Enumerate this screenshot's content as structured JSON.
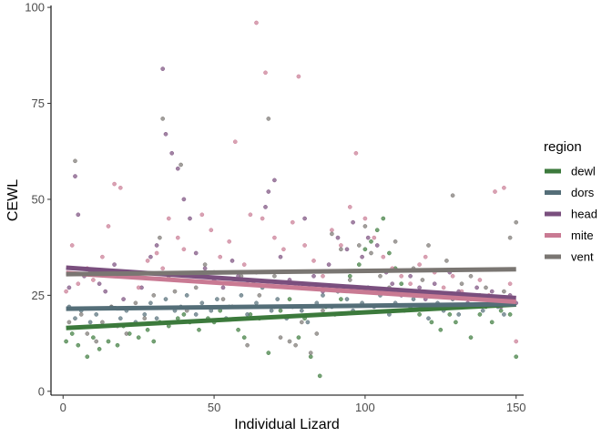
{
  "chart_data": {
    "type": "scatter",
    "title": "",
    "xlabel": "Individual Lizard",
    "ylabel": "CEWL",
    "xlim": [
      -4,
      152.5
    ],
    "ylim": [
      -1,
      100.5
    ],
    "x_ticks": [
      0,
      50,
      100,
      150
    ],
    "y_ticks": [
      0,
      25,
      50,
      75,
      100
    ],
    "x_tick_labels": [
      "0",
      "50",
      "100",
      "150"
    ],
    "y_tick_labels": [
      "0",
      "25",
      "50",
      "75",
      "100"
    ],
    "grid": false,
    "legend": {
      "title": "region",
      "position": "right"
    },
    "series": [
      {
        "name": "dewl",
        "color": "#3c7a3c",
        "trend": [
          [
            1,
            16.5
          ],
          [
            150,
            22.6
          ]
        ],
        "points": [
          [
            1,
            13
          ],
          [
            3,
            15
          ],
          [
            5,
            12
          ],
          [
            8,
            9
          ],
          [
            10,
            14
          ],
          [
            12,
            11
          ],
          [
            15,
            13
          ],
          [
            18,
            12
          ],
          [
            20,
            17
          ],
          [
            22,
            15
          ],
          [
            25,
            14
          ],
          [
            28,
            16
          ],
          [
            30,
            13
          ],
          [
            32,
            18
          ],
          [
            35,
            17
          ],
          [
            38,
            19
          ],
          [
            40,
            20
          ],
          [
            42,
            18
          ],
          [
            45,
            16
          ],
          [
            48,
            19
          ],
          [
            50,
            18
          ],
          [
            52,
            21
          ],
          [
            55,
            22
          ],
          [
            58,
            16
          ],
          [
            60,
            14
          ],
          [
            62,
            20
          ],
          [
            65,
            19
          ],
          [
            68,
            10
          ],
          [
            70,
            22
          ],
          [
            72,
            21
          ],
          [
            75,
            24
          ],
          [
            78,
            14
          ],
          [
            80,
            19
          ],
          [
            82,
            9
          ],
          [
            85,
            4
          ],
          [
            87,
            22
          ],
          [
            90,
            20
          ],
          [
            92,
            24
          ],
          [
            95,
            30
          ],
          [
            98,
            33
          ],
          [
            100,
            37
          ],
          [
            102,
            39
          ],
          [
            104,
            42
          ],
          [
            106,
            45
          ],
          [
            108,
            36
          ],
          [
            110,
            32
          ],
          [
            112,
            28
          ],
          [
            115,
            22
          ],
          [
            118,
            20
          ],
          [
            120,
            25
          ],
          [
            122,
            18
          ],
          [
            125,
            16
          ],
          [
            128,
            20
          ],
          [
            130,
            18
          ],
          [
            132,
            22
          ],
          [
            135,
            14
          ],
          [
            138,
            20
          ],
          [
            140,
            22
          ],
          [
            142,
            18
          ],
          [
            145,
            21
          ],
          [
            148,
            20
          ],
          [
            150,
            9
          ]
        ]
      },
      {
        "name": "dors",
        "color": "#546e78",
        "trend": [
          [
            1,
            21.5
          ],
          [
            150,
            22.7
          ]
        ],
        "points": [
          [
            2,
            22
          ],
          [
            4,
            19
          ],
          [
            6,
            21
          ],
          [
            9,
            18
          ],
          [
            11,
            20
          ],
          [
            14,
            17
          ],
          [
            16,
            22
          ],
          [
            19,
            19
          ],
          [
            21,
            21
          ],
          [
            24,
            18
          ],
          [
            27,
            20
          ],
          [
            29,
            23
          ],
          [
            31,
            19
          ],
          [
            34,
            24
          ],
          [
            37,
            21
          ],
          [
            39,
            22
          ],
          [
            41,
            25
          ],
          [
            44,
            20
          ],
          [
            46,
            23
          ],
          [
            49,
            21
          ],
          [
            51,
            24
          ],
          [
            54,
            19
          ],
          [
            56,
            22
          ],
          [
            59,
            25
          ],
          [
            61,
            20
          ],
          [
            64,
            23
          ],
          [
            66,
            27
          ],
          [
            69,
            21
          ],
          [
            71,
            24
          ],
          [
            74,
            19
          ],
          [
            76,
            22
          ],
          [
            79,
            21
          ],
          [
            81,
            18
          ],
          [
            84,
            23
          ],
          [
            86,
            25
          ],
          [
            89,
            22
          ],
          [
            91,
            26
          ],
          [
            94,
            24
          ],
          [
            96,
            21
          ],
          [
            99,
            23
          ],
          [
            101,
            27
          ],
          [
            103,
            22
          ],
          [
            105,
            25
          ],
          [
            108,
            20
          ],
          [
            110,
            23
          ],
          [
            113,
            21
          ],
          [
            116,
            24
          ],
          [
            119,
            22
          ],
          [
            121,
            19
          ],
          [
            124,
            23
          ],
          [
            126,
            21
          ],
          [
            129,
            24
          ],
          [
            131,
            20
          ],
          [
            134,
            22
          ],
          [
            136,
            25
          ],
          [
            139,
            21
          ],
          [
            141,
            23
          ],
          [
            144,
            22
          ],
          [
            146,
            20
          ],
          [
            149,
            24
          ]
        ]
      },
      {
        "name": "head",
        "color": "#7a4f7e",
        "trend": [
          [
            1,
            32.2
          ],
          [
            150,
            24.3
          ]
        ],
        "points": [
          [
            2,
            27
          ],
          [
            4,
            56
          ],
          [
            5,
            46
          ],
          [
            7,
            30
          ],
          [
            9,
            31
          ],
          [
            12,
            28
          ],
          [
            14,
            26
          ],
          [
            17,
            33
          ],
          [
            20,
            24
          ],
          [
            23,
            30
          ],
          [
            26,
            27
          ],
          [
            29,
            35
          ],
          [
            31,
            38
          ],
          [
            33,
            84
          ],
          [
            34,
            67
          ],
          [
            36,
            62
          ],
          [
            38,
            58
          ],
          [
            40,
            50
          ],
          [
            42,
            45
          ],
          [
            44,
            36
          ],
          [
            47,
            32
          ],
          [
            50,
            29
          ],
          [
            53,
            27
          ],
          [
            56,
            34
          ],
          [
            58,
            30
          ],
          [
            61,
            28
          ],
          [
            64,
            31
          ],
          [
            67,
            48
          ],
          [
            68,
            52
          ],
          [
            70,
            55
          ],
          [
            72,
            35
          ],
          [
            75,
            29
          ],
          [
            78,
            27
          ],
          [
            80,
            45
          ],
          [
            83,
            30
          ],
          [
            86,
            26
          ],
          [
            88,
            33
          ],
          [
            91,
            40
          ],
          [
            94,
            37
          ],
          [
            96,
            44
          ],
          [
            99,
            35
          ],
          [
            101,
            40
          ],
          [
            104,
            38
          ],
          [
            107,
            31
          ],
          [
            109,
            28
          ],
          [
            112,
            25
          ],
          [
            115,
            30
          ],
          [
            118,
            27
          ],
          [
            120,
            24
          ],
          [
            123,
            28
          ],
          [
            126,
            22
          ],
          [
            128,
            31
          ],
          [
            131,
            26
          ],
          [
            134,
            23
          ],
          [
            137,
            27
          ],
          [
            139,
            24
          ],
          [
            142,
            26
          ],
          [
            145,
            22
          ],
          [
            148,
            25
          ],
          [
            150,
            23
          ]
        ]
      },
      {
        "name": "mite",
        "color": "#c97a93",
        "trend": [
          [
            1,
            30.8
          ],
          [
            150,
            23.3
          ]
        ],
        "points": [
          [
            1,
            26
          ],
          [
            3,
            38
          ],
          [
            5,
            28
          ],
          [
            8,
            32
          ],
          [
            10,
            29
          ],
          [
            13,
            35
          ],
          [
            15,
            43
          ],
          [
            17,
            54
          ],
          [
            19,
            53
          ],
          [
            22,
            30
          ],
          [
            25,
            27
          ],
          [
            28,
            34
          ],
          [
            31,
            36
          ],
          [
            33,
            32
          ],
          [
            35,
            45
          ],
          [
            38,
            40
          ],
          [
            40,
            37
          ],
          [
            43,
            30
          ],
          [
            46,
            46
          ],
          [
            49,
            42
          ],
          [
            52,
            35
          ],
          [
            55,
            39
          ],
          [
            57,
            65
          ],
          [
            60,
            33
          ],
          [
            62,
            46
          ],
          [
            64,
            96
          ],
          [
            66,
            45
          ],
          [
            67,
            83
          ],
          [
            70,
            40
          ],
          [
            73,
            37
          ],
          [
            76,
            44
          ],
          [
            78,
            82
          ],
          [
            80,
            38
          ],
          [
            83,
            34
          ],
          [
            86,
            30
          ],
          [
            89,
            42
          ],
          [
            92,
            38
          ],
          [
            95,
            48
          ],
          [
            97,
            62
          ],
          [
            100,
            45
          ],
          [
            103,
            40
          ],
          [
            106,
            35
          ],
          [
            109,
            32
          ],
          [
            112,
            30
          ],
          [
            115,
            28
          ],
          [
            118,
            33
          ],
          [
            120,
            35
          ],
          [
            123,
            31
          ],
          [
            126,
            27
          ],
          [
            129,
            30
          ],
          [
            132,
            26
          ],
          [
            135,
            24
          ],
          [
            138,
            29
          ],
          [
            141,
            25
          ],
          [
            143,
            52
          ],
          [
            146,
            53
          ],
          [
            148,
            28
          ],
          [
            150,
            13
          ]
        ]
      },
      {
        "name": "vent",
        "color": "#7a7672",
        "trend": [
          [
            1,
            30.5
          ],
          [
            150,
            31.8
          ]
        ],
        "points": [
          [
            2,
            18
          ],
          [
            4,
            60
          ],
          [
            6,
            20
          ],
          [
            8,
            15
          ],
          [
            11,
            13
          ],
          [
            13,
            18
          ],
          [
            16,
            22
          ],
          [
            18,
            17
          ],
          [
            21,
            15
          ],
          [
            24,
            23
          ],
          [
            27,
            19
          ],
          [
            30,
            25
          ],
          [
            32,
            40
          ],
          [
            33,
            71
          ],
          [
            35,
            30
          ],
          [
            37,
            26
          ],
          [
            39,
            59
          ],
          [
            41,
            21
          ],
          [
            44,
            27
          ],
          [
            47,
            33
          ],
          [
            50,
            31
          ],
          [
            53,
            24
          ],
          [
            56,
            22
          ],
          [
            59,
            30
          ],
          [
            61,
            12
          ],
          [
            63,
            28
          ],
          [
            65,
            25
          ],
          [
            68,
            71
          ],
          [
            70,
            30
          ],
          [
            72,
            14
          ],
          [
            75,
            13
          ],
          [
            77,
            12
          ],
          [
            79,
            18
          ],
          [
            82,
            10
          ],
          [
            84,
            15
          ],
          [
            86,
            21
          ],
          [
            89,
            41
          ],
          [
            92,
            37
          ],
          [
            95,
            29
          ],
          [
            98,
            38
          ],
          [
            100,
            43
          ],
          [
            102,
            36
          ],
          [
            105,
            30
          ],
          [
            108,
            27
          ],
          [
            110,
            39
          ],
          [
            113,
            26
          ],
          [
            116,
            32
          ],
          [
            119,
            29
          ],
          [
            121,
            38
          ],
          [
            124,
            25
          ],
          [
            127,
            34
          ],
          [
            129,
            51
          ],
          [
            132,
            28
          ],
          [
            135,
            30
          ],
          [
            138,
            25
          ],
          [
            140,
            27
          ],
          [
            143,
            23
          ],
          [
            146,
            26
          ],
          [
            148,
            40
          ],
          [
            150,
            44
          ]
        ]
      }
    ]
  }
}
